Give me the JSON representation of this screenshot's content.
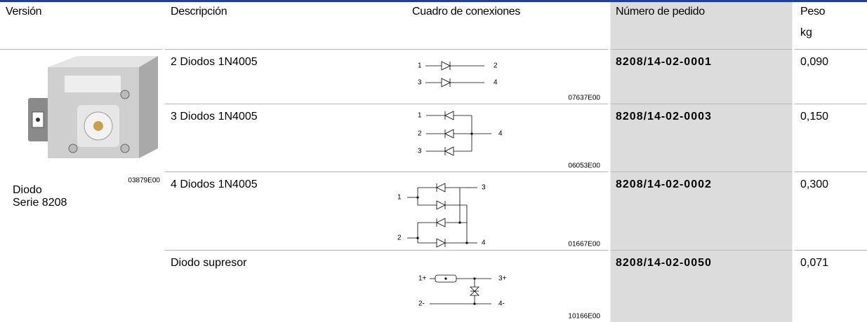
{
  "table": {
    "headers": [
      "Versión",
      "Descripción",
      "Cuadro de conexiones",
      "Número de pedido",
      "Peso"
    ],
    "weight_unit": "kg",
    "version": {
      "image_code": "03879E00",
      "lines": [
        "Diodo",
        "Serie 8208"
      ]
    },
    "rows": [
      {
        "description": "2 Diodos 1N4005",
        "diagram": {
          "code": "07637E00",
          "labels": [
            "1",
            "2",
            "3",
            "4"
          ]
        },
        "order_number": "8208/14-02-0001",
        "weight": "0,090"
      },
      {
        "description": "3 Diodos 1N4005",
        "diagram": {
          "code": "06053E00",
          "labels": [
            "1",
            "2",
            "3",
            "4"
          ]
        },
        "order_number": "8208/14-02-0003",
        "weight": "0,150"
      },
      {
        "description": "4 Diodos 1N4005",
        "diagram": {
          "code": "01667E00",
          "labels": [
            "1",
            "2",
            "3",
            "4"
          ]
        },
        "order_number": "8208/14-02-0002",
        "weight": "0,300"
      },
      {
        "description": "Diodo supresor",
        "diagram": {
          "code": "10166E00",
          "labels": [
            "1+",
            "2-",
            "3+",
            "4-"
          ]
        },
        "order_number": "8208/14-02-0050",
        "weight": "0,071"
      }
    ]
  }
}
